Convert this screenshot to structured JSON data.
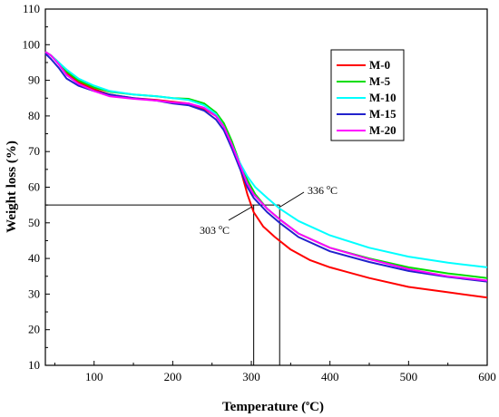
{
  "chart_data": {
    "type": "line",
    "xlabel_main": "Temperature (",
    "xlabel_sup": "o",
    "xlabel_end": "C)",
    "ylabel": "Weight loss (%)",
    "xlim": [
      38,
      600
    ],
    "ylim": [
      10,
      110
    ],
    "x_ticks": [
      100,
      200,
      300,
      400,
      500,
      600
    ],
    "y_ticks": [
      10,
      20,
      30,
      40,
      50,
      60,
      70,
      80,
      90,
      100,
      110
    ],
    "legend_position": "top-right",
    "grid": false,
    "series": [
      {
        "name": "M-0",
        "color": "#ff0000",
        "points": [
          [
            38,
            98
          ],
          [
            45,
            97
          ],
          [
            55,
            95
          ],
          [
            65,
            92
          ],
          [
            80,
            89.5
          ],
          [
            100,
            87.5
          ],
          [
            120,
            86
          ],
          [
            150,
            85
          ],
          [
            180,
            84.5
          ],
          [
            200,
            84
          ],
          [
            220,
            83.5
          ],
          [
            240,
            82
          ],
          [
            255,
            80
          ],
          [
            265,
            77
          ],
          [
            275,
            72
          ],
          [
            285,
            66
          ],
          [
            295,
            58
          ],
          [
            303,
            53
          ],
          [
            315,
            49
          ],
          [
            330,
            46
          ],
          [
            350,
            42.5
          ],
          [
            375,
            39.5
          ],
          [
            400,
            37.5
          ],
          [
            450,
            34.5
          ],
          [
            500,
            32
          ],
          [
            550,
            30.5
          ],
          [
            600,
            29
          ]
        ]
      },
      {
        "name": "M-5",
        "color": "#00dd00",
        "points": [
          [
            38,
            98
          ],
          [
            45,
            97
          ],
          [
            55,
            95
          ],
          [
            65,
            92.5
          ],
          [
            80,
            90
          ],
          [
            100,
            88
          ],
          [
            120,
            86.8
          ],
          [
            150,
            86
          ],
          [
            180,
            85.5
          ],
          [
            200,
            85
          ],
          [
            220,
            84.8
          ],
          [
            240,
            83.5
          ],
          [
            255,
            81
          ],
          [
            265,
            78
          ],
          [
            275,
            73
          ],
          [
            285,
            67
          ],
          [
            295,
            62
          ],
          [
            305,
            58
          ],
          [
            320,
            54
          ],
          [
            336,
            51
          ],
          [
            360,
            47
          ],
          [
            400,
            43
          ],
          [
            450,
            40
          ],
          [
            500,
            37.5
          ],
          [
            550,
            35.8
          ],
          [
            600,
            34.5
          ]
        ]
      },
      {
        "name": "M-10",
        "color": "#00ffff",
        "points": [
          [
            38,
            98
          ],
          [
            45,
            97
          ],
          [
            55,
            95
          ],
          [
            65,
            93
          ],
          [
            80,
            90.5
          ],
          [
            100,
            88.5
          ],
          [
            120,
            87
          ],
          [
            150,
            86
          ],
          [
            180,
            85.5
          ],
          [
            200,
            85
          ],
          [
            220,
            84.5
          ],
          [
            240,
            83
          ],
          [
            255,
            80.5
          ],
          [
            265,
            77
          ],
          [
            275,
            72
          ],
          [
            285,
            67
          ],
          [
            295,
            63
          ],
          [
            305,
            60
          ],
          [
            320,
            57
          ],
          [
            336,
            54
          ],
          [
            360,
            50.5
          ],
          [
            400,
            46.5
          ],
          [
            450,
            43
          ],
          [
            500,
            40.5
          ],
          [
            550,
            38.8
          ],
          [
            600,
            37.5
          ]
        ]
      },
      {
        "name": "M-15",
        "color": "#2222cc",
        "points": [
          [
            38,
            97.5
          ],
          [
            45,
            96
          ],
          [
            55,
            93.5
          ],
          [
            65,
            90.5
          ],
          [
            80,
            88.5
          ],
          [
            100,
            87
          ],
          [
            120,
            86
          ],
          [
            150,
            85
          ],
          [
            180,
            84.3
          ],
          [
            200,
            83.5
          ],
          [
            220,
            83
          ],
          [
            240,
            81.5
          ],
          [
            255,
            79
          ],
          [
            265,
            76
          ],
          [
            275,
            71
          ],
          [
            285,
            65.5
          ],
          [
            295,
            60
          ],
          [
            303,
            57
          ],
          [
            320,
            53
          ],
          [
            336,
            50
          ],
          [
            360,
            46
          ],
          [
            400,
            42
          ],
          [
            450,
            39
          ],
          [
            500,
            36.5
          ],
          [
            550,
            34.8
          ],
          [
            600,
            33.5
          ]
        ]
      },
      {
        "name": "M-20",
        "color": "#ff00ff",
        "points": [
          [
            38,
            98
          ],
          [
            45,
            97
          ],
          [
            55,
            94.5
          ],
          [
            65,
            91.5
          ],
          [
            80,
            89
          ],
          [
            100,
            87
          ],
          [
            120,
            85.5
          ],
          [
            150,
            84.8
          ],
          [
            180,
            84.3
          ],
          [
            200,
            83.8
          ],
          [
            220,
            83.5
          ],
          [
            240,
            82.3
          ],
          [
            255,
            80
          ],
          [
            265,
            77
          ],
          [
            275,
            72
          ],
          [
            285,
            66.5
          ],
          [
            295,
            61
          ],
          [
            303,
            58
          ],
          [
            320,
            54
          ],
          [
            336,
            51
          ],
          [
            360,
            47
          ],
          [
            400,
            43
          ],
          [
            450,
            39.8
          ],
          [
            500,
            37
          ],
          [
            550,
            35
          ],
          [
            600,
            33.8
          ]
        ]
      }
    ],
    "reference_line_y": 55,
    "reference_lines_x": [
      303,
      336
    ],
    "annotations": [
      {
        "text_main": "303 ",
        "sup": "o",
        "text_end": "C"
      },
      {
        "text_main": "336 ",
        "sup": "o",
        "text_end": "C"
      }
    ]
  }
}
